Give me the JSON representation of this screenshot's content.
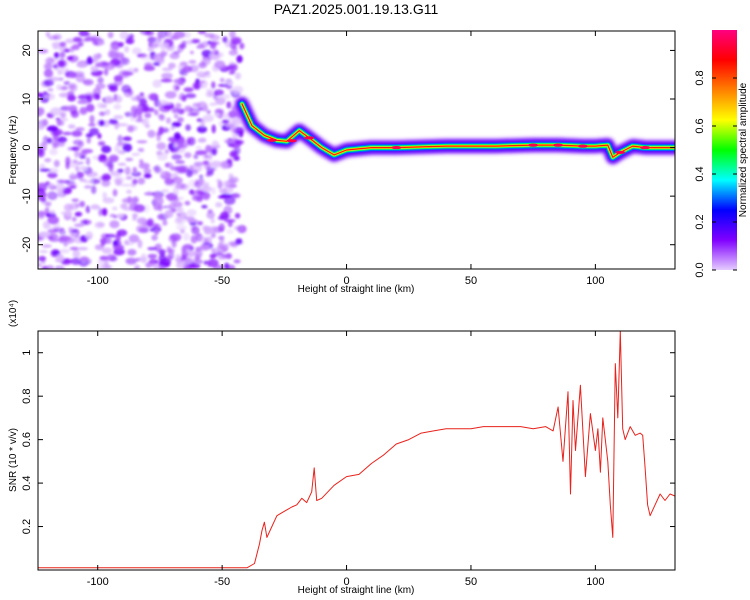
{
  "figure": {
    "title": "PAZ1.2025.001.19.13.G11"
  },
  "chart_data": [
    {
      "type": "heatmap",
      "xlabel": "Height of straight line (km)",
      "ylabel": "Frequency (Hz)",
      "xlim": [
        -124,
        132
      ],
      "ylim": [
        -25,
        24
      ],
      "xticks": [
        -100,
        -50,
        0,
        50,
        100
      ],
      "yticks": [
        -20,
        -10,
        0,
        10,
        20
      ],
      "colormap": [
        "#e5ccff",
        "#8000ff",
        "#0000ff",
        "#00ffff",
        "#00ff00",
        "#ffff00",
        "#ff8000",
        "#ff0000",
        "#ff0080"
      ],
      "colorbar": {
        "label": "Normalized spectral amplitude",
        "range": [
          0,
          1
        ],
        "ticks": [
          "0.0",
          "0.2",
          "0.4",
          "0.6",
          "0.8"
        ]
      },
      "noise_region": {
        "x_range": [
          -124,
          -42
        ],
        "freq_range": [
          -25,
          24
        ],
        "amplitude_range": [
          0.0,
          0.15
        ]
      },
      "ridge": [
        {
          "x": -42,
          "freq": 9.0
        },
        {
          "x": -38,
          "freq": 4.5
        },
        {
          "x": -33,
          "freq": 2.5
        },
        {
          "x": -28,
          "freq": 1.5
        },
        {
          "x": -24,
          "freq": 1.3
        },
        {
          "x": -19,
          "freq": 3.5
        },
        {
          "x": -15,
          "freq": 2.0
        },
        {
          "x": -10,
          "freq": 0.0
        },
        {
          "x": -5,
          "freq": -1.5
        },
        {
          "x": 0,
          "freq": -0.5
        },
        {
          "x": 10,
          "freq": 0.0
        },
        {
          "x": 20,
          "freq": 0.0
        },
        {
          "x": 40,
          "freq": 0.3
        },
        {
          "x": 60,
          "freq": 0.3
        },
        {
          "x": 75,
          "freq": 0.5
        },
        {
          "x": 85,
          "freq": 0.5
        },
        {
          "x": 95,
          "freq": 0.3
        },
        {
          "x": 100,
          "freq": 0.3
        },
        {
          "x": 105,
          "freq": 0.5
        },
        {
          "x": 107,
          "freq": -2.0
        },
        {
          "x": 110,
          "freq": -1.0
        },
        {
          "x": 115,
          "freq": 0.3
        },
        {
          "x": 120,
          "freq": 0.0
        },
        {
          "x": 132,
          "freq": 0.0
        }
      ]
    },
    {
      "type": "line",
      "xlabel": "Height of straight line (km)",
      "ylabel": "SNR (10 * v/v)",
      "yscale_label": "(x10⁴)",
      "xlim": [
        -124,
        132
      ],
      "ylim": [
        0,
        1.1
      ],
      "xticks": [
        -100,
        -50,
        0,
        50,
        100
      ],
      "yticks": [
        0.2,
        0.4,
        0.6,
        0.8,
        1.0
      ],
      "color": "#e8221c",
      "series": [
        {
          "x": [
            -124,
            -100,
            -80,
            -60,
            -40,
            -37,
            -35,
            -34,
            -33,
            -32,
            -30,
            -28,
            -25,
            -22,
            -20,
            -18,
            -16,
            -14,
            -13,
            -12,
            -10,
            -5,
            0,
            5,
            10,
            15,
            20,
            25,
            30,
            35,
            40,
            45,
            50,
            55,
            60,
            65,
            70,
            75,
            80,
            83,
            85,
            87,
            89,
            90,
            91,
            92,
            94,
            96,
            98,
            100,
            101,
            102,
            103,
            104,
            105,
            106,
            107,
            108,
            109,
            110,
            111,
            112,
            114,
            116,
            118,
            119,
            120,
            121,
            122,
            124,
            126,
            128,
            130,
            132
          ],
          "y": [
            0.01,
            0.01,
            0.01,
            0.01,
            0.01,
            0.03,
            0.12,
            0.18,
            0.22,
            0.15,
            0.2,
            0.25,
            0.27,
            0.29,
            0.3,
            0.33,
            0.31,
            0.36,
            0.47,
            0.32,
            0.33,
            0.39,
            0.43,
            0.44,
            0.49,
            0.53,
            0.58,
            0.6,
            0.63,
            0.64,
            0.65,
            0.65,
            0.65,
            0.66,
            0.66,
            0.66,
            0.66,
            0.65,
            0.66,
            0.64,
            0.75,
            0.5,
            0.82,
            0.35,
            0.78,
            0.55,
            0.85,
            0.43,
            0.72,
            0.55,
            0.65,
            0.45,
            0.7,
            0.6,
            0.5,
            0.3,
            0.15,
            0.95,
            0.7,
            1.1,
            0.65,
            0.6,
            0.66,
            0.62,
            0.63,
            0.62,
            0.47,
            0.3,
            0.25,
            0.3,
            0.35,
            0.32,
            0.35,
            0.34
          ]
        }
      ]
    }
  ]
}
